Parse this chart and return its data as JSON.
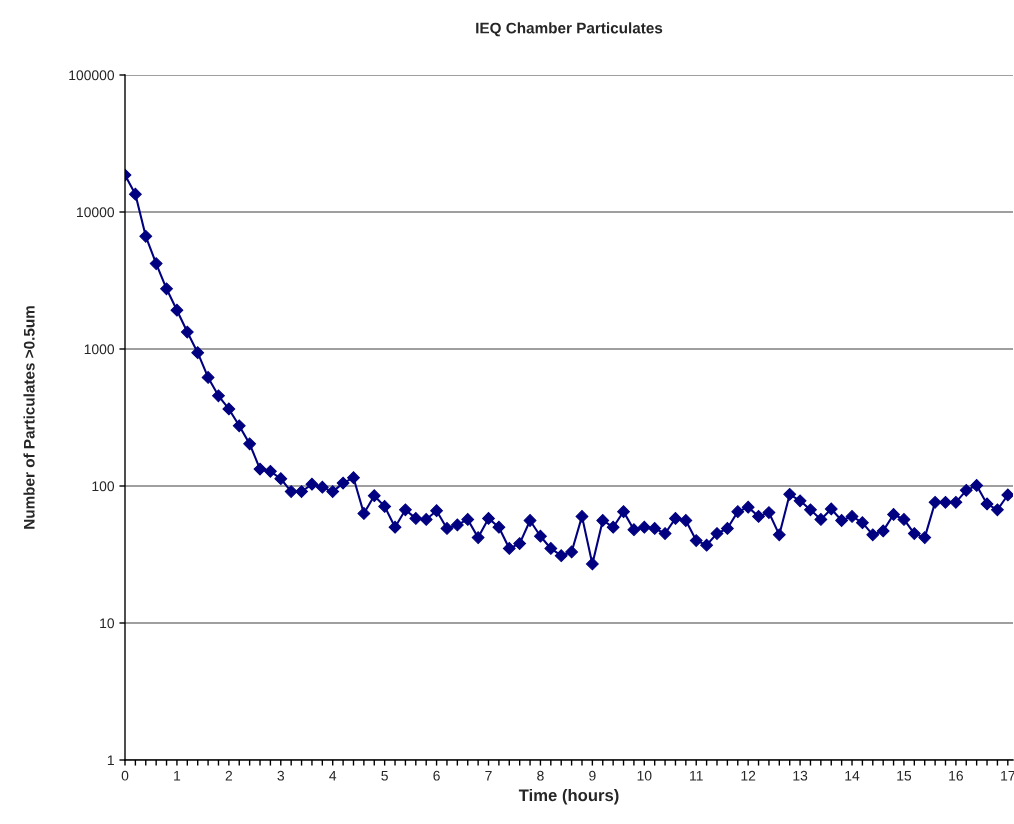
{
  "chart_data": {
    "type": "line",
    "title": "IEQ Chamber Particulates",
    "xlabel": "Time (hours)",
    "ylabel": "Number of Particulates >0.5um",
    "x": [
      0,
      0.2,
      0.4,
      0.6,
      0.8,
      1.0,
      1.2,
      1.4,
      1.6,
      1.8,
      2.0,
      2.2,
      2.4,
      2.6,
      2.8,
      3.0,
      3.2,
      3.4,
      3.6,
      3.8,
      4.0,
      4.2,
      4.4,
      4.6,
      4.8,
      5.0,
      5.2,
      5.4,
      5.6,
      5.8,
      6.0,
      6.2,
      6.4,
      6.6,
      6.8,
      7.0,
      7.2,
      7.4,
      7.6,
      7.8,
      8.0,
      8.2,
      8.4,
      8.6,
      8.8,
      9.0,
      9.2,
      9.4,
      9.6,
      9.8,
      10.0,
      10.2,
      10.4,
      10.6,
      10.8,
      11.0,
      11.2,
      11.4,
      11.6,
      11.8,
      12.0,
      12.2,
      12.4,
      12.6,
      12.8,
      13.0,
      13.2,
      13.4,
      13.6,
      13.8,
      14.0,
      14.2,
      14.4,
      14.6,
      14.8,
      15.0,
      15.2,
      15.4,
      15.6,
      15.8,
      16.0,
      16.2,
      16.4,
      16.6,
      16.8,
      17.0
    ],
    "series": [
      {
        "color": "#000080",
        "values": [
          18600,
          13500,
          6650,
          4200,
          2750,
          1920,
          1330,
          940,
          620,
          455,
          365,
          275,
          203,
          133,
          128,
          113,
          91,
          91,
          103,
          98,
          91,
          105,
          115,
          63,
          85,
          71,
          50,
          67,
          58,
          57,
          66,
          49,
          52,
          57,
          42,
          58,
          50,
          35,
          38,
          56,
          43,
          35,
          31,
          33,
          60,
          27,
          56,
          50,
          65,
          48,
          50,
          49,
          45,
          58,
          56,
          40,
          37,
          45,
          49,
          65,
          70,
          60,
          64,
          44,
          87,
          78,
          67,
          57,
          68,
          56,
          60,
          54,
          44,
          47,
          62,
          57,
          45,
          42,
          76,
          76,
          76,
          93,
          101,
          74,
          67,
          86
        ]
      }
    ],
    "log": "y",
    "ylim": [
      1,
      100000
    ],
    "yticks": [
      1,
      10,
      100,
      1000,
      10000,
      100000
    ],
    "xlim": [
      0,
      17.1
    ],
    "xticks": [
      0,
      {
        "value": 0.2,
        "label": null
      },
      {
        "value": 0.4,
        "label": null
      },
      {
        "value": 0.6,
        "label": null
      },
      {
        "value": 0.8,
        "label": null
      },
      1,
      {
        "value": 1.2,
        "label": null
      },
      {
        "value": 1.4,
        "label": null
      },
      {
        "value": 1.6,
        "label": null
      },
      {
        "value": 1.8,
        "label": null
      },
      2,
      {
        "value": 2.2,
        "label": null
      },
      {
        "value": 2.4,
        "label": null
      },
      {
        "value": 2.6,
        "label": null
      },
      {
        "value": 2.8,
        "label": null
      },
      3,
      {
        "value": 3.2,
        "label": null
      },
      {
        "value": 3.4,
        "label": null
      },
      {
        "value": 3.6,
        "label": null
      },
      {
        "value": 3.8,
        "label": null
      },
      4,
      {
        "value": 4.2,
        "label": null
      },
      {
        "value": 4.4,
        "label": null
      },
      {
        "value": 4.6,
        "label": null
      },
      {
        "value": 4.8,
        "label": null
      },
      5,
      {
        "value": 5.2,
        "label": null
      },
      {
        "value": 5.4,
        "label": null
      },
      {
        "value": 5.6,
        "label": null
      },
      {
        "value": 5.8,
        "label": null
      },
      6,
      {
        "value": 6.2,
        "label": null
      },
      {
        "value": 6.4,
        "label": null
      },
      {
        "value": 6.6,
        "label": null
      },
      {
        "value": 6.8,
        "label": null
      },
      7,
      {
        "value": 7.2,
        "label": null
      },
      {
        "value": 7.4,
        "label": null
      },
      {
        "value": 7.6,
        "label": null
      },
      {
        "value": 7.8,
        "label": null
      },
      8,
      {
        "value": 8.2,
        "label": null
      },
      {
        "value": 8.4,
        "label": null
      },
      {
        "value": 8.6,
        "label": null
      },
      {
        "value": 8.8,
        "label": null
      },
      9,
      {
        "value": 9.2,
        "label": null
      },
      {
        "value": 9.4,
        "label": null
      },
      {
        "value": 9.6,
        "label": null
      },
      {
        "value": 9.8,
        "label": null
      },
      10,
      {
        "value": 10.2,
        "label": null
      },
      {
        "value": 10.4,
        "label": null
      },
      {
        "value": 10.6,
        "label": null
      },
      {
        "value": 10.8,
        "label": null
      },
      11,
      {
        "value": 11.2,
        "label": null
      },
      {
        "value": 11.4,
        "label": null
      },
      {
        "value": 11.6,
        "label": null
      },
      {
        "value": 11.8,
        "label": null
      },
      12,
      {
        "value": 12.2,
        "label": null
      },
      {
        "value": 12.4,
        "label": null
      },
      {
        "value": 12.6,
        "label": null
      },
      {
        "value": 12.8,
        "label": null
      },
      13,
      {
        "value": 13.2,
        "label": null
      },
      {
        "value": 13.4,
        "label": null
      },
      {
        "value": 13.6,
        "label": null
      },
      {
        "value": 13.8,
        "label": null
      },
      14,
      {
        "value": 14.2,
        "label": null
      },
      {
        "value": 14.4,
        "label": null
      },
      {
        "value": 14.6,
        "label": null
      },
      {
        "value": 14.8,
        "label": null
      },
      15,
      {
        "value": 15.2,
        "label": null
      },
      {
        "value": 15.4,
        "label": null
      },
      {
        "value": 15.6,
        "label": null
      },
      {
        "value": 15.8,
        "label": null
      },
      16,
      {
        "value": 16.2,
        "label": null
      },
      {
        "value": 16.4,
        "label": null
      },
      {
        "value": 16.6,
        "label": null
      },
      {
        "value": 16.8,
        "label": null
      },
      17
    ],
    "grid": "y",
    "marker": "diamond",
    "line_style": "solid"
  }
}
